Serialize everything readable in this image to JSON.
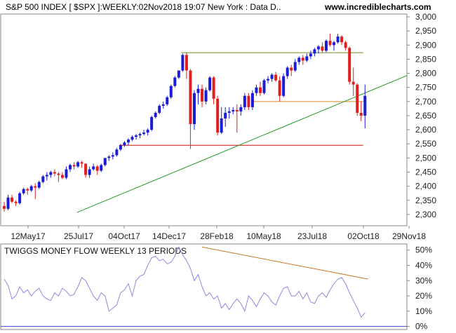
{
  "header": {
    "title": "S&P 500 INDEX [ $SPX ]:WEEKLY:02Nov2018 19:07 New York : Data D..",
    "website": "www.incrediblecharts.com"
  },
  "chart_data": [
    {
      "type": "candlestick",
      "title": "S&P 500 INDEX [ $SPX ]:WEEKLY:02Nov2018 19:07 New York : Data D..",
      "x_tick_labels": [
        "12May17",
        "25Jul17",
        "04Oct17",
        "14Dec17",
        "28Feb18",
        "10May18",
        "23Jul18",
        "02Oct18",
        "29Nov18"
      ],
      "y_tick_labels": [
        "3,000",
        "2,950",
        "2,900",
        "2,850",
        "2,800",
        "2,750",
        "2,700",
        "2,650",
        "2,600",
        "2,550",
        "2,500",
        "2,450",
        "2,400",
        "2,350",
        "2,300"
      ],
      "ylim": [
        2260,
        3010
      ],
      "grid": false,
      "colors": {
        "up": "#1c1cd6",
        "down": "#e02020",
        "trendline": "#1f9a1f",
        "resistance_high": "#6b8e23",
        "support_mid": "#d88820",
        "support_low": "#d01010"
      },
      "candles": [
        [
          2330,
          2345,
          2310,
          2320
        ],
        [
          2320,
          2370,
          2315,
          2360
        ],
        [
          2360,
          2370,
          2340,
          2345
        ],
        [
          2345,
          2350,
          2330,
          2340
        ],
        [
          2340,
          2380,
          2335,
          2375
        ],
        [
          2375,
          2395,
          2370,
          2390
        ],
        [
          2390,
          2395,
          2370,
          2385
        ],
        [
          2385,
          2405,
          2380,
          2400
        ],
        [
          2400,
          2410,
          2355,
          2395
        ],
        [
          2395,
          2420,
          2390,
          2415
        ],
        [
          2415,
          2440,
          2410,
          2435
        ],
        [
          2435,
          2450,
          2420,
          2440
        ],
        [
          2440,
          2455,
          2430,
          2450
        ],
        [
          2450,
          2460,
          2435,
          2445
        ],
        [
          2445,
          2450,
          2415,
          2440
        ],
        [
          2440,
          2450,
          2425,
          2430
        ],
        [
          2430,
          2470,
          2425,
          2460
        ],
        [
          2460,
          2480,
          2450,
          2475
        ],
        [
          2475,
          2485,
          2460,
          2470
        ],
        [
          2470,
          2490,
          2465,
          2485
        ],
        [
          2485,
          2490,
          2465,
          2480
        ],
        [
          2480,
          2480,
          2430,
          2440
        ],
        [
          2440,
          2470,
          2430,
          2460
        ],
        [
          2460,
          2480,
          2455,
          2470
        ],
        [
          2470,
          2475,
          2440,
          2455
        ],
        [
          2455,
          2480,
          2450,
          2475
        ],
        [
          2475,
          2500,
          2470,
          2500
        ],
        [
          2500,
          2510,
          2490,
          2505
        ],
        [
          2505,
          2520,
          2495,
          2510
        ],
        [
          2510,
          2535,
          2505,
          2530
        ],
        [
          2530,
          2550,
          2525,
          2545
        ],
        [
          2545,
          2560,
          2540,
          2555
        ],
        [
          2555,
          2570,
          2545,
          2565
        ],
        [
          2565,
          2580,
          2560,
          2575
        ],
        [
          2575,
          2585,
          2565,
          2580
        ],
        [
          2580,
          2590,
          2570,
          2585
        ],
        [
          2585,
          2600,
          2580,
          2590
        ],
        [
          2590,
          2605,
          2580,
          2600
        ],
        [
          2600,
          2650,
          2595,
          2645
        ],
        [
          2645,
          2665,
          2640,
          2660
        ],
        [
          2660,
          2690,
          2655,
          2685
        ],
        [
          2685,
          2700,
          2675,
          2690
        ],
        [
          2690,
          2720,
          2685,
          2715
        ],
        [
          2715,
          2760,
          2710,
          2755
        ],
        [
          2755,
          2790,
          2750,
          2785
        ],
        [
          2785,
          2810,
          2780,
          2810
        ],
        [
          2810,
          2870,
          2805,
          2865
        ],
        [
          2865,
          2873,
          2780,
          2810
        ],
        [
          2810,
          2815,
          2532,
          2620
        ],
        [
          2620,
          2740,
          2600,
          2730
        ],
        [
          2730,
          2760,
          2690,
          2745
        ],
        [
          2745,
          2760,
          2680,
          2700
        ],
        [
          2700,
          2750,
          2690,
          2740
        ],
        [
          2740,
          2790,
          2735,
          2785
        ],
        [
          2785,
          2790,
          2690,
          2710
        ],
        [
          2710,
          2720,
          2580,
          2590
        ],
        [
          2590,
          2680,
          2585,
          2640
        ],
        [
          2640,
          2680,
          2610,
          2660
        ],
        [
          2660,
          2680,
          2640,
          2665
        ],
        [
          2665,
          2680,
          2655,
          2670
        ],
        [
          2670,
          2690,
          2590,
          2665
        ],
        [
          2665,
          2690,
          2650,
          2680
        ],
        [
          2680,
          2730,
          2670,
          2720
        ],
        [
          2720,
          2730,
          2670,
          2680
        ],
        [
          2680,
          2740,
          2670,
          2730
        ],
        [
          2730,
          2760,
          2720,
          2750
        ],
        [
          2750,
          2770,
          2720,
          2730
        ],
        [
          2730,
          2780,
          2725,
          2775
        ],
        [
          2775,
          2790,
          2765,
          2780
        ],
        [
          2780,
          2800,
          2770,
          2795
        ],
        [
          2795,
          2805,
          2770,
          2775
        ],
        [
          2775,
          2790,
          2700,
          2720
        ],
        [
          2720,
          2800,
          2715,
          2790
        ],
        [
          2790,
          2825,
          2780,
          2820
        ],
        [
          2820,
          2830,
          2790,
          2810
        ],
        [
          2810,
          2850,
          2805,
          2840
        ],
        [
          2840,
          2860,
          2830,
          2855
        ],
        [
          2855,
          2865,
          2830,
          2845
        ],
        [
          2845,
          2870,
          2840,
          2860
        ],
        [
          2860,
          2880,
          2850,
          2870
        ],
        [
          2870,
          2890,
          2860,
          2885
        ],
        [
          2885,
          2900,
          2870,
          2895
        ],
        [
          2895,
          2910,
          2875,
          2880
        ],
        [
          2880,
          2920,
          2875,
          2915
        ],
        [
          2915,
          2940,
          2895,
          2900
        ],
        [
          2900,
          2915,
          2880,
          2910
        ],
        [
          2910,
          2940,
          2905,
          2930
        ],
        [
          2930,
          2935,
          2900,
          2910
        ],
        [
          2910,
          2915,
          2880,
          2890
        ],
        [
          2890,
          2895,
          2760,
          2770
        ],
        [
          2770,
          2820,
          2720,
          2760
        ],
        [
          2760,
          2765,
          2650,
          2660
        ],
        [
          2660,
          2700,
          2630,
          2650
        ],
        [
          2650,
          2760,
          2605,
          2720
        ]
      ],
      "horizontal_lines": [
        {
          "name": "resistance-2873",
          "value": 2873,
          "from_index": 46,
          "to_index": 92
        },
        {
          "name": "support-2700",
          "value": 2700,
          "from_index": 64,
          "to_index": 92
        },
        {
          "name": "support-2545",
          "value": 2545,
          "from_index": 30,
          "to_index": 92
        }
      ],
      "trendlines": [
        {
          "name": "long-term-trendline",
          "from": [
            7,
            2307
          ],
          "to": [
            92,
            2792
          ]
        }
      ]
    },
    {
      "type": "line",
      "title": "TWIGGS MONEY FLOW WEEKLY 13 PERIODS",
      "y_tick_labels": [
        "50%",
        "40%",
        "30%",
        "20%",
        "10%",
        "0%"
      ],
      "ylim": [
        -0.02,
        0.54
      ],
      "colors": {
        "line": "#8a8ae0",
        "baseline": "#4444cc",
        "trendline": "#c8782a"
      },
      "values": [
        0.31,
        0.27,
        0.18,
        0.2,
        0.26,
        0.22,
        0.24,
        0.2,
        0.23,
        0.25,
        0.2,
        0.18,
        0.17,
        0.22,
        0.2,
        0.25,
        0.23,
        0.2,
        0.21,
        0.26,
        0.32,
        0.3,
        0.25,
        0.2,
        0.17,
        0.22,
        0.2,
        0.1,
        0.12,
        0.14,
        0.22,
        0.24,
        0.28,
        0.2,
        0.3,
        0.33,
        0.34,
        0.4,
        0.45,
        0.46,
        0.43,
        0.44,
        0.41,
        0.42,
        0.46,
        0.52,
        0.47,
        0.43,
        0.38,
        0.3,
        0.34,
        0.26,
        0.2,
        0.22,
        0.18,
        0.2,
        0.12,
        0.15,
        0.11,
        0.15,
        0.18,
        0.15,
        0.1,
        0.2,
        0.17,
        0.13,
        0.18,
        0.22,
        0.2,
        0.16,
        0.14,
        0.2,
        0.25,
        0.26,
        0.2,
        0.2,
        0.23,
        0.18,
        0.22,
        0.16,
        0.15,
        0.2,
        0.22,
        0.19,
        0.24,
        0.28,
        0.31,
        0.32,
        0.28,
        0.22,
        0.17,
        0.12,
        0.06,
        0.09
      ],
      "trendline": {
        "from": [
          45,
          0.52
        ],
        "to": [
          92,
          0.31
        ]
      }
    }
  ]
}
